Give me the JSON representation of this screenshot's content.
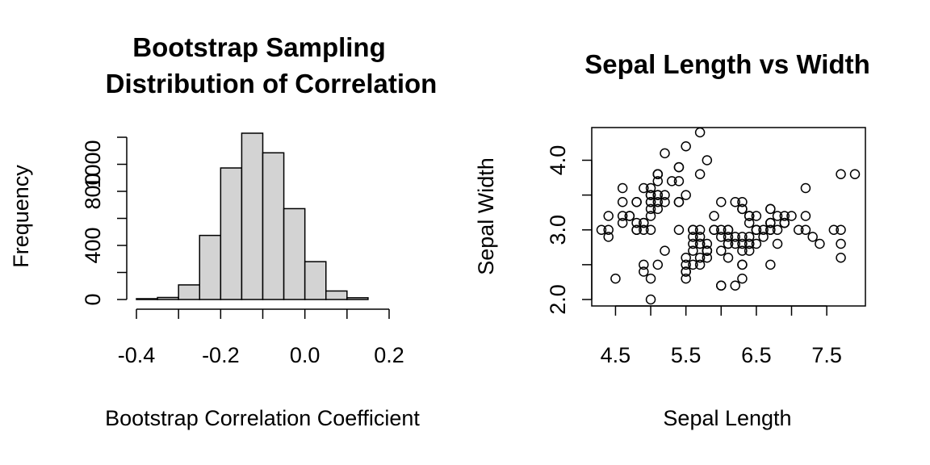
{
  "chart_data": [
    {
      "type": "histogram",
      "title_lines": [
        "Bootstrap Sampling",
        "Distribution of Correlation"
      ],
      "xlabel": "Bootstrap Correlation Coefficient",
      "ylabel": "Frequency",
      "bin_edges": [
        -0.4,
        -0.35,
        -0.3,
        -0.25,
        -0.2,
        -0.15,
        -0.1,
        -0.05,
        0.0,
        0.05,
        0.1,
        0.15
      ],
      "counts": [
        6,
        15,
        108,
        474,
        973,
        1230,
        1085,
        672,
        280,
        63,
        13
      ],
      "xlim": [
        -0.4,
        0.2
      ],
      "ylim": [
        0,
        1230
      ],
      "xticks": [
        -0.4,
        -0.2,
        0.0,
        0.2
      ],
      "xtick_labels": [
        "-0.4",
        "-0.2",
        "0.0",
        "0.2"
      ],
      "yticks": [
        0,
        400,
        800,
        1000
      ],
      "ytick_labels": [
        "0",
        "400",
        "800",
        "1000"
      ]
    },
    {
      "type": "scatter",
      "title": "Sepal Length vs Width",
      "xlabel": "Sepal Length",
      "ylabel": "Sepal Width",
      "xlim": [
        4.3,
        7.9
      ],
      "ylim": [
        2.0,
        4.4
      ],
      "xticks": [
        4.5,
        5.5,
        6.5,
        7.5
      ],
      "xtick_labels": [
        "4.5",
        "5.5",
        "6.5",
        "7.5"
      ],
      "yticks": [
        2.0,
        3.0,
        4.0
      ],
      "ytick_labels": [
        "2.0",
        "3.0",
        "4.0"
      ],
      "points": [
        [
          5.1,
          3.5
        ],
        [
          4.9,
          3.0
        ],
        [
          4.7,
          3.2
        ],
        [
          4.6,
          3.1
        ],
        [
          5.0,
          3.6
        ],
        [
          5.4,
          3.9
        ],
        [
          4.6,
          3.4
        ],
        [
          5.0,
          3.4
        ],
        [
          4.4,
          2.9
        ],
        [
          4.9,
          3.1
        ],
        [
          5.4,
          3.7
        ],
        [
          4.8,
          3.4
        ],
        [
          4.8,
          3.0
        ],
        [
          4.3,
          3.0
        ],
        [
          5.8,
          4.0
        ],
        [
          5.7,
          4.4
        ],
        [
          5.4,
          3.9
        ],
        [
          5.1,
          3.5
        ],
        [
          5.7,
          3.8
        ],
        [
          5.1,
          3.8
        ],
        [
          5.4,
          3.4
        ],
        [
          5.1,
          3.7
        ],
        [
          4.6,
          3.6
        ],
        [
          5.1,
          3.3
        ],
        [
          4.8,
          3.4
        ],
        [
          5.0,
          3.0
        ],
        [
          5.0,
          3.4
        ],
        [
          5.2,
          3.5
        ],
        [
          5.2,
          3.4
        ],
        [
          4.7,
          3.2
        ],
        [
          4.8,
          3.1
        ],
        [
          5.4,
          3.4
        ],
        [
          5.2,
          4.1
        ],
        [
          5.5,
          4.2
        ],
        [
          4.9,
          3.1
        ],
        [
          5.0,
          3.2
        ],
        [
          5.5,
          3.5
        ],
        [
          4.9,
          3.6
        ],
        [
          4.4,
          3.0
        ],
        [
          5.1,
          3.4
        ],
        [
          5.0,
          3.5
        ],
        [
          4.5,
          2.3
        ],
        [
          4.4,
          3.2
        ],
        [
          5.0,
          3.5
        ],
        [
          5.1,
          3.8
        ],
        [
          4.8,
          3.0
        ],
        [
          5.1,
          3.8
        ],
        [
          4.6,
          3.2
        ],
        [
          5.3,
          3.7
        ],
        [
          5.0,
          3.3
        ],
        [
          7.0,
          3.2
        ],
        [
          6.4,
          3.2
        ],
        [
          6.9,
          3.1
        ],
        [
          5.5,
          2.3
        ],
        [
          6.5,
          2.8
        ],
        [
          5.7,
          2.8
        ],
        [
          6.3,
          3.3
        ],
        [
          4.9,
          2.4
        ],
        [
          6.6,
          2.9
        ],
        [
          5.2,
          2.7
        ],
        [
          5.0,
          2.0
        ],
        [
          5.9,
          3.0
        ],
        [
          6.0,
          2.2
        ],
        [
          6.1,
          2.9
        ],
        [
          5.6,
          2.9
        ],
        [
          6.7,
          3.1
        ],
        [
          5.6,
          3.0
        ],
        [
          5.8,
          2.7
        ],
        [
          6.2,
          2.2
        ],
        [
          5.6,
          2.5
        ],
        [
          5.9,
          3.2
        ],
        [
          6.1,
          2.8
        ],
        [
          6.3,
          2.5
        ],
        [
          6.1,
          2.8
        ],
        [
          6.4,
          2.9
        ],
        [
          6.6,
          3.0
        ],
        [
          6.8,
          2.8
        ],
        [
          6.7,
          3.0
        ],
        [
          6.0,
          2.9
        ],
        [
          5.7,
          2.6
        ],
        [
          5.5,
          2.4
        ],
        [
          5.5,
          2.4
        ],
        [
          5.8,
          2.7
        ],
        [
          6.0,
          2.7
        ],
        [
          5.4,
          3.0
        ],
        [
          6.0,
          3.4
        ],
        [
          6.7,
          3.1
        ],
        [
          6.3,
          2.3
        ],
        [
          5.6,
          3.0
        ],
        [
          5.5,
          2.5
        ],
        [
          5.5,
          2.6
        ],
        [
          6.1,
          3.0
        ],
        [
          5.8,
          2.6
        ],
        [
          5.0,
          2.3
        ],
        [
          5.6,
          2.7
        ],
        [
          5.7,
          3.0
        ],
        [
          5.7,
          2.9
        ],
        [
          6.2,
          2.9
        ],
        [
          5.1,
          2.5
        ],
        [
          5.7,
          2.8
        ],
        [
          6.3,
          3.3
        ],
        [
          5.8,
          2.7
        ],
        [
          7.1,
          3.0
        ],
        [
          6.3,
          2.9
        ],
        [
          6.5,
          3.0
        ],
        [
          7.6,
          3.0
        ],
        [
          4.9,
          2.5
        ],
        [
          7.3,
          2.9
        ],
        [
          6.7,
          2.5
        ],
        [
          7.2,
          3.6
        ],
        [
          6.5,
          3.2
        ],
        [
          6.4,
          2.7
        ],
        [
          6.8,
          3.0
        ],
        [
          5.7,
          2.5
        ],
        [
          5.8,
          2.8
        ],
        [
          6.4,
          3.2
        ],
        [
          6.5,
          3.0
        ],
        [
          7.7,
          3.8
        ],
        [
          7.7,
          2.6
        ],
        [
          6.0,
          2.2
        ],
        [
          6.9,
          3.2
        ],
        [
          5.6,
          2.8
        ],
        [
          7.7,
          2.8
        ],
        [
          6.3,
          2.7
        ],
        [
          6.7,
          3.3
        ],
        [
          7.2,
          3.2
        ],
        [
          6.2,
          2.8
        ],
        [
          6.1,
          3.0
        ],
        [
          6.4,
          2.8
        ],
        [
          7.2,
          3.0
        ],
        [
          7.4,
          2.8
        ],
        [
          7.9,
          3.8
        ],
        [
          6.4,
          2.8
        ],
        [
          6.3,
          2.8
        ],
        [
          6.1,
          2.6
        ],
        [
          7.7,
          3.0
        ],
        [
          6.3,
          3.4
        ],
        [
          6.4,
          3.1
        ],
        [
          6.0,
          3.0
        ],
        [
          6.9,
          3.1
        ],
        [
          6.7,
          3.1
        ],
        [
          6.9,
          3.1
        ],
        [
          5.8,
          2.7
        ],
        [
          6.8,
          3.2
        ],
        [
          6.7,
          3.3
        ],
        [
          6.7,
          3.0
        ],
        [
          6.3,
          2.5
        ],
        [
          6.5,
          3.0
        ],
        [
          6.2,
          3.4
        ],
        [
          5.9,
          3.0
        ]
      ]
    }
  ]
}
